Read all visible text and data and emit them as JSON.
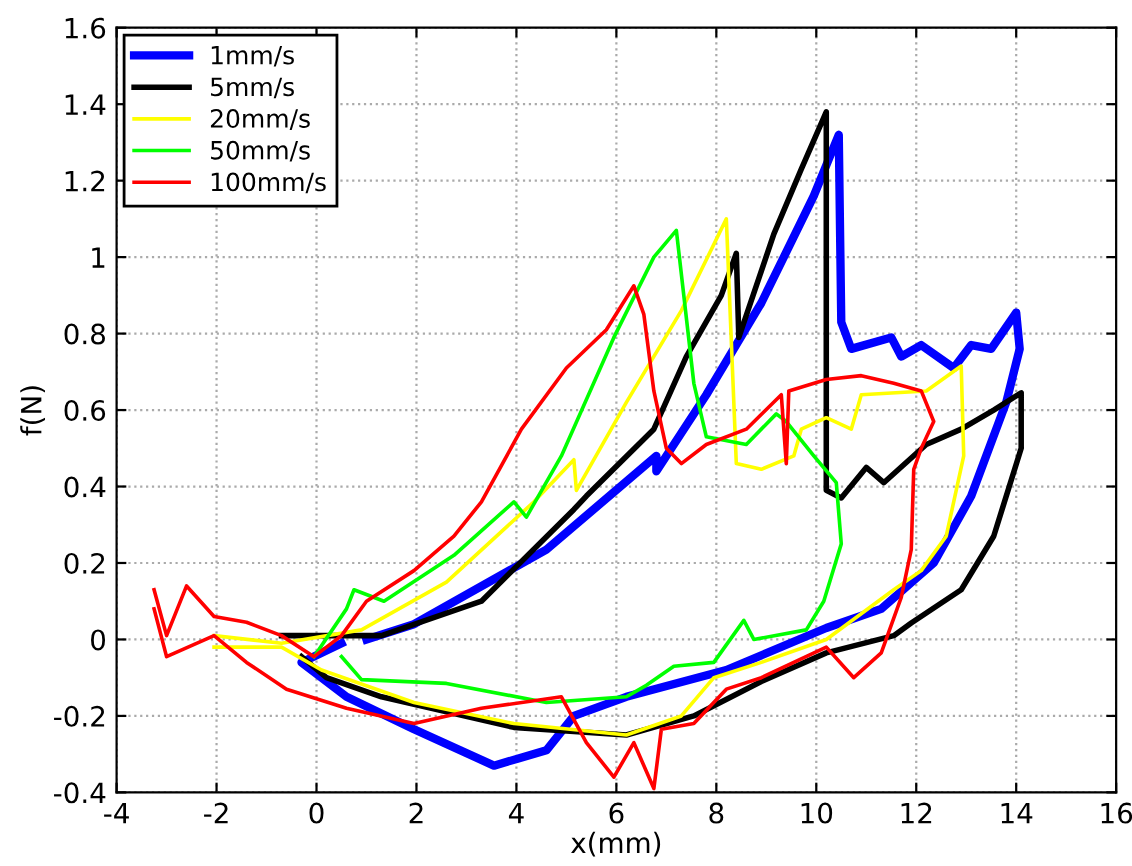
{
  "chart_data": {
    "type": "line",
    "xlabel": "x(mm)",
    "ylabel": "f(N)",
    "xlim": [
      -4,
      16
    ],
    "xticks": [
      -4,
      -2,
      0,
      2,
      4,
      6,
      8,
      10,
      12,
      14,
      16
    ],
    "ylim": [
      -0.4,
      1.6
    ],
    "yticks": [
      -0.4,
      -0.2,
      0,
      0.2,
      0.4,
      0.6,
      0.8,
      1,
      1.2,
      1.4,
      1.6
    ],
    "grid": true,
    "legend": "top left",
    "marker": "none",
    "line_style": "solid",
    "series": [
      {
        "name": "1mm/s",
        "color": "#0000ff",
        "x": [
          1.0,
          1.95,
          4.6,
          6.8,
          6.8,
          7.8,
          8.9,
          9.95,
          10.45,
          10.5,
          10.7,
          11.5,
          11.7,
          12.1,
          12.75,
          13.1,
          13.5,
          14.0,
          14.07,
          13.8,
          13.1,
          12.35,
          11.3,
          10.2,
          8.2,
          6.2,
          5.15,
          4.6,
          3.55,
          1.95,
          0.6,
          -0.3,
          0.5
        ],
        "values": [
          0,
          0.04,
          0.235,
          0.48,
          0.44,
          0.64,
          0.88,
          1.16,
          1.32,
          0.83,
          0.76,
          0.79,
          0.74,
          0.77,
          0.71,
          0.77,
          0.76,
          0.855,
          0.76,
          0.62,
          0.375,
          0.2,
          0.08,
          0.03,
          -0.08,
          -0.15,
          -0.2,
          -0.29,
          -0.33,
          -0.235,
          -0.15,
          -0.06,
          -0.01
        ]
      },
      {
        "name": "5mm/s",
        "color": "#000000",
        "x": [
          -0.7,
          1.3,
          3.3,
          5.15,
          5.4,
          6.75,
          7.4,
          8.1,
          8.4,
          8.45,
          9.15,
          9.7,
          10.2,
          10.2,
          10.5,
          11.0,
          11.35,
          12.2,
          12.9,
          13.55,
          14.1,
          14.1,
          13.55,
          12.9,
          11.9,
          11.55,
          10.2,
          8.9,
          7.55,
          6.2,
          3.95,
          1.3,
          0.2,
          -0.3
        ],
        "values": [
          0.01,
          0.01,
          0.1,
          0.34,
          0.375,
          0.55,
          0.74,
          0.9,
          1.01,
          0.79,
          1.06,
          1.23,
          1.38,
          0.39,
          0.37,
          0.45,
          0.41,
          0.51,
          0.55,
          0.6,
          0.645,
          0.5,
          0.27,
          0.13,
          0.043,
          0.01,
          -0.035,
          -0.11,
          -0.2,
          -0.25,
          -0.23,
          -0.15,
          -0.1,
          -0.045
        ]
      },
      {
        "name": "20mm/s",
        "color": "#ffff00",
        "x": [
          -2.05,
          -0.7,
          0.9,
          2.6,
          4.35,
          5.15,
          5.2,
          6.2,
          7.3,
          8.2,
          8.4,
          8.9,
          9.55,
          9.7,
          10.2,
          10.7,
          10.9,
          12.2,
          12.9,
          12.95,
          12.6,
          12.1,
          11.55,
          10.2,
          8.9,
          7.95,
          7.3,
          6.2,
          3.95,
          1.95,
          0.1,
          -0.7,
          -2.05
        ],
        "values": [
          0.01,
          -0.01,
          0.025,
          0.15,
          0.36,
          0.47,
          0.39,
          0.62,
          0.86,
          1.1,
          0.46,
          0.445,
          0.48,
          0.55,
          0.58,
          0.55,
          0.64,
          0.65,
          0.715,
          0.48,
          0.27,
          0.18,
          0.13,
          0.0,
          -0.06,
          -0.1,
          -0.2,
          -0.25,
          -0.22,
          -0.165,
          -0.08,
          -0.02,
          -0.02
        ]
      },
      {
        "name": "50mm/s",
        "color": "#00ff00",
        "x": [
          -0.05,
          0.6,
          0.75,
          1.35,
          2.75,
          3.95,
          4.2,
          4.9,
          5.95,
          6.75,
          7.2,
          7.55,
          7.8,
          8.6,
          9.2,
          9.4,
          9.95,
          10.4,
          10.5,
          10.15,
          9.8,
          8.75,
          8.55,
          7.95,
          7.15,
          6.6,
          6.2,
          4.6,
          2.6,
          0.9,
          0.5
        ],
        "values": [
          -0.045,
          0.08,
          0.13,
          0.1,
          0.22,
          0.36,
          0.32,
          0.48,
          0.79,
          1.0,
          1.07,
          0.67,
          0.53,
          0.51,
          0.59,
          0.57,
          0.48,
          0.41,
          0.25,
          0.1,
          0.025,
          0,
          0.05,
          -0.06,
          -0.07,
          -0.12,
          -0.15,
          -0.165,
          -0.115,
          -0.105,
          -0.045
        ]
      },
      {
        "name": "100mm/s",
        "color": "#ff0000",
        "x": [
          -3.25,
          -3.0,
          -2.6,
          -2.05,
          -1.4,
          -0.7,
          -0.05,
          0.5,
          1.0,
          1.95,
          2.75,
          3.3,
          4.1,
          5.0,
          5.8,
          6.35,
          6.55,
          6.75,
          7.0,
          7.3,
          7.8,
          8.6,
          9.3,
          9.4,
          9.45,
          10.2,
          10.9,
          11.55,
          12.1,
          12.35,
          12.1,
          11.95,
          11.9,
          11.7,
          11.3,
          10.75,
          10.2,
          8.9,
          8.2,
          7.55,
          6.9,
          6.75,
          6.35,
          5.95,
          5.4,
          4.9,
          3.3,
          1.95,
          0.6,
          -0.6,
          -1.4,
          -2.05,
          -3.0,
          -3.25
        ],
        "values": [
          0.13,
          0.01,
          0.14,
          0.06,
          0.045,
          0.01,
          -0.045,
          0.01,
          0.1,
          0.18,
          0.27,
          0.36,
          0.55,
          0.71,
          0.81,
          0.925,
          0.85,
          0.65,
          0.5,
          0.46,
          0.51,
          0.55,
          0.64,
          0.46,
          0.65,
          0.68,
          0.69,
          0.67,
          0.65,
          0.57,
          0.5,
          0.445,
          0.235,
          0.11,
          -0.035,
          -0.1,
          -0.02,
          -0.1,
          -0.13,
          -0.22,
          -0.235,
          -0.39,
          -0.27,
          -0.36,
          -0.27,
          -0.15,
          -0.18,
          -0.22,
          -0.18,
          -0.13,
          -0.06,
          0.01,
          -0.045,
          0.08
        ]
      }
    ]
  }
}
